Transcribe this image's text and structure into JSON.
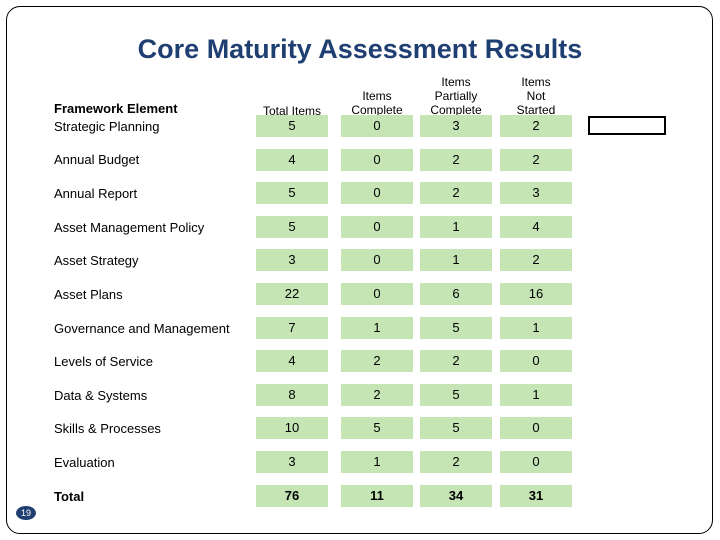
{
  "title": "Core Maturity Assessment Results",
  "headers": {
    "framework": "Framework Element",
    "total_items": "Total Items",
    "items_complete": [
      "Items",
      "Complete"
    ],
    "items_partially": [
      "Items",
      "Partially",
      "Complete"
    ],
    "items_not_started": [
      "Items",
      "Not",
      "Started"
    ]
  },
  "rows": [
    {
      "label": "Strategic Planning",
      "total": "5",
      "complete": "0",
      "partial": "3",
      "not_started": "2"
    },
    {
      "label": "Annual Budget",
      "total": "4",
      "complete": "0",
      "partial": "2",
      "not_started": "2"
    },
    {
      "label": "Annual Report",
      "total": "5",
      "complete": "0",
      "partial": "2",
      "not_started": "3"
    },
    {
      "label": "Asset Management Policy",
      "total": "5",
      "complete": "0",
      "partial": "1",
      "not_started": "4"
    },
    {
      "label": "Asset Strategy",
      "total": "3",
      "complete": "0",
      "partial": "1",
      "not_started": "2"
    },
    {
      "label": "Asset Plans",
      "total": "22",
      "complete": "0",
      "partial": "6",
      "not_started": "16"
    },
    {
      "label": "Governance and Management",
      "total": "7",
      "complete": "1",
      "partial": "5",
      "not_started": "1"
    },
    {
      "label": "Levels of Service",
      "total": "4",
      "complete": "2",
      "partial": "2",
      "not_started": "0"
    },
    {
      "label": "Data & Systems",
      "total": "8",
      "complete": "2",
      "partial": "5",
      "not_started": "1"
    },
    {
      "label": "Skills & Processes",
      "total": "10",
      "complete": "5",
      "partial": "5",
      "not_started": "0"
    },
    {
      "label": "Evaluation",
      "total": "3",
      "complete": "1",
      "partial": "2",
      "not_started": "0"
    }
  ],
  "total_row": {
    "label": "Total",
    "total": "76",
    "complete": "11",
    "partial": "34",
    "not_started": "31"
  },
  "page_number": "19",
  "colors": {
    "title": "#1f3f72",
    "cell_fill": "#c5e5b5",
    "page_badge": "#1f3f72"
  }
}
